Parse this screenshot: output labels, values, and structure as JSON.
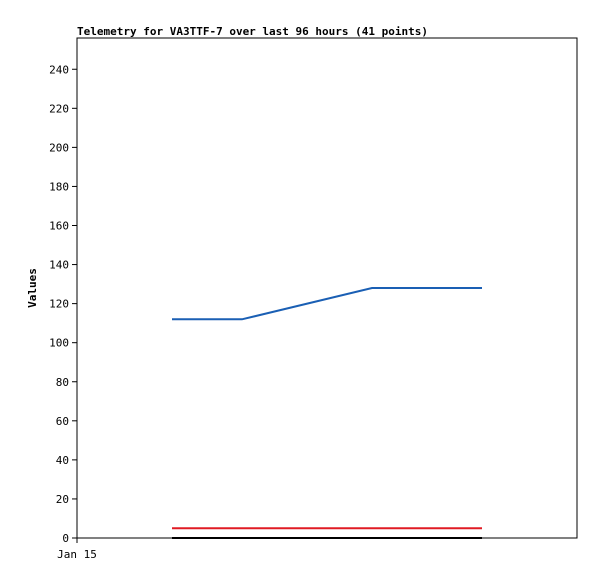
{
  "chart_data": {
    "type": "line",
    "title": "Telemetry for VA3TTF-7 over last 96 hours (41 points)",
    "xlabel": "",
    "ylabel": "Values",
    "x_tick_labels": [
      "Jan 15"
    ],
    "y_ticks": [
      0,
      20,
      40,
      60,
      80,
      100,
      120,
      140,
      160,
      180,
      200,
      220,
      240
    ],
    "ylim": [
      0,
      256
    ],
    "grid": false,
    "legend": "none",
    "series": [
      {
        "color": "#1a5fb4",
        "points": [
          [
            0.19,
            112
          ],
          [
            0.33,
            112
          ],
          [
            0.59,
            128
          ],
          [
            0.81,
            128
          ]
        ]
      },
      {
        "color": "#e01b24",
        "points": [
          [
            0.19,
            5
          ],
          [
            0.81,
            5
          ]
        ]
      },
      {
        "color": "#000000",
        "points": [
          [
            0.19,
            0
          ],
          [
            0.81,
            0
          ]
        ]
      }
    ]
  }
}
